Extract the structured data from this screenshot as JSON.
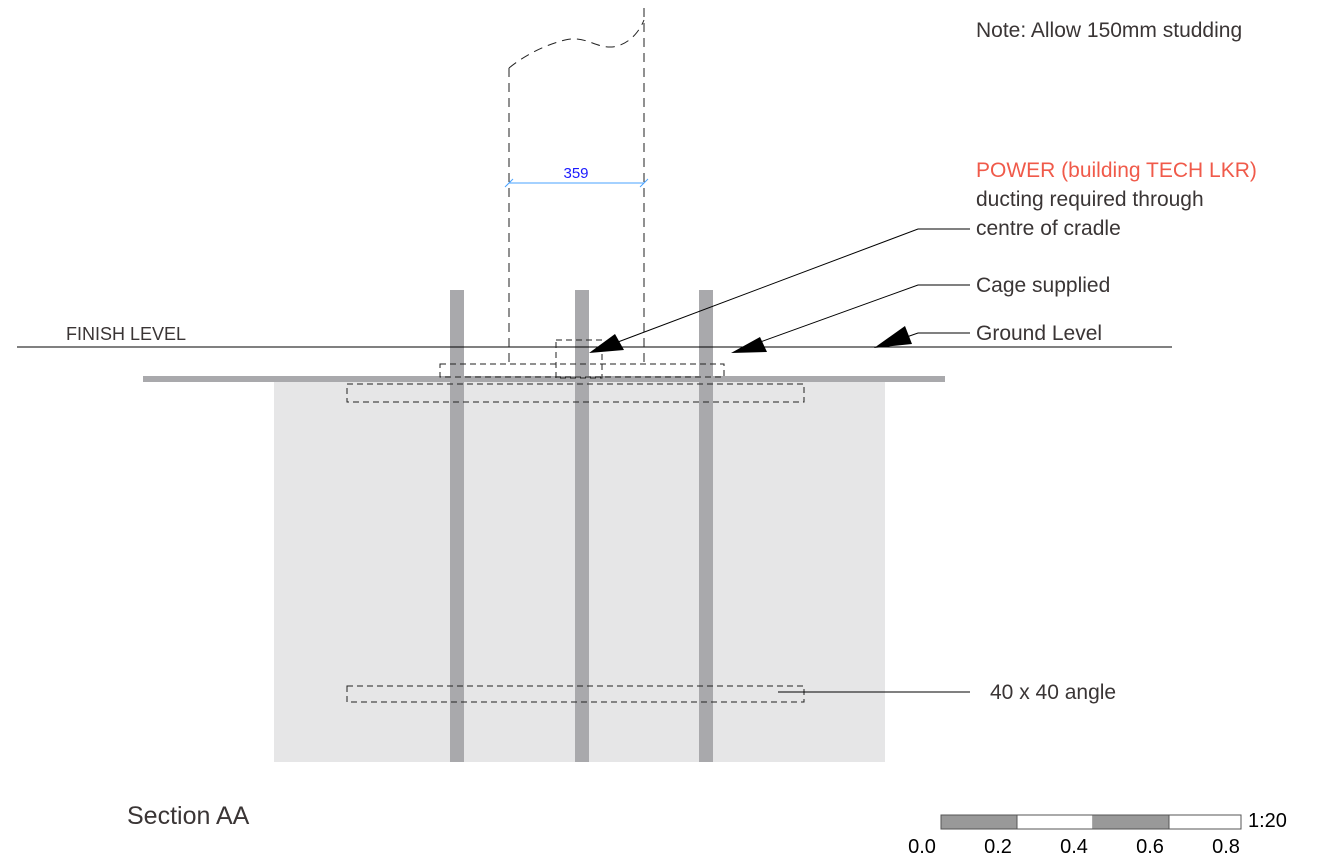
{
  "note": "Note: Allow 150mm studding",
  "dimension": "359",
  "power_label": "POWER (building TECH LKR)",
  "power_detail_line1": "ducting required through",
  "power_detail_line2": "centre of cradle",
  "cage_label": "Cage supplied",
  "ground_label": "Ground Level",
  "finish_level_label": "FINISH LEVEL",
  "angle_label": "40 x 40 angle",
  "section_title": "Section AA",
  "scale": {
    "ratio": "1:20",
    "ticks": [
      "0.0",
      "0.2",
      "0.4",
      "0.6",
      "0.8"
    ]
  },
  "colors": {
    "power_label": "#f05a4a",
    "dimension": "#1a1aff",
    "dimension_line": "#4aa3ff",
    "concrete": "#e6e6e7",
    "steel": "#a9a9ac",
    "scale_fill": "#999999"
  }
}
